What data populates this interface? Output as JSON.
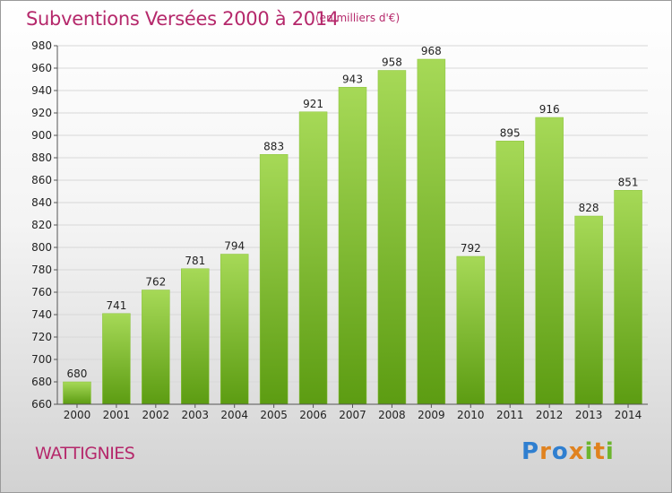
{
  "title": "Subventions Versées 2000 à 2014",
  "unit": "(en milliers d'€)",
  "commune": "WATTIGNIES",
  "logo": {
    "text": "Proxiti",
    "letter_colors": [
      "#2f7fd0",
      "#e0821f",
      "#2f7fd0",
      "#e0821f",
      "#6cb52e",
      "#e0821f",
      "#6cb52e"
    ]
  },
  "colors": {
    "title": "#b5286b",
    "bar_top": "#a6d957",
    "bar_bottom": "#5c9c12",
    "grid": "#d8d8d8"
  },
  "chart_data": {
    "type": "bar",
    "categories": [
      "2000",
      "2001",
      "2002",
      "2003",
      "2004",
      "2005",
      "2006",
      "2007",
      "2008",
      "2009",
      "2010",
      "2011",
      "2012",
      "2013",
      "2014"
    ],
    "values": [
      680,
      741,
      762,
      781,
      794,
      883,
      921,
      943,
      958,
      968,
      792,
      895,
      916,
      828,
      851
    ],
    "title": "Subventions Versées 2000 à 2014",
    "xlabel": "",
    "ylabel": "",
    "ylim": [
      660,
      980
    ],
    "yticks": [
      660,
      680,
      700,
      720,
      740,
      760,
      780,
      800,
      820,
      840,
      860,
      880,
      900,
      920,
      940,
      960,
      980
    ],
    "grid": true,
    "legend": "none"
  }
}
